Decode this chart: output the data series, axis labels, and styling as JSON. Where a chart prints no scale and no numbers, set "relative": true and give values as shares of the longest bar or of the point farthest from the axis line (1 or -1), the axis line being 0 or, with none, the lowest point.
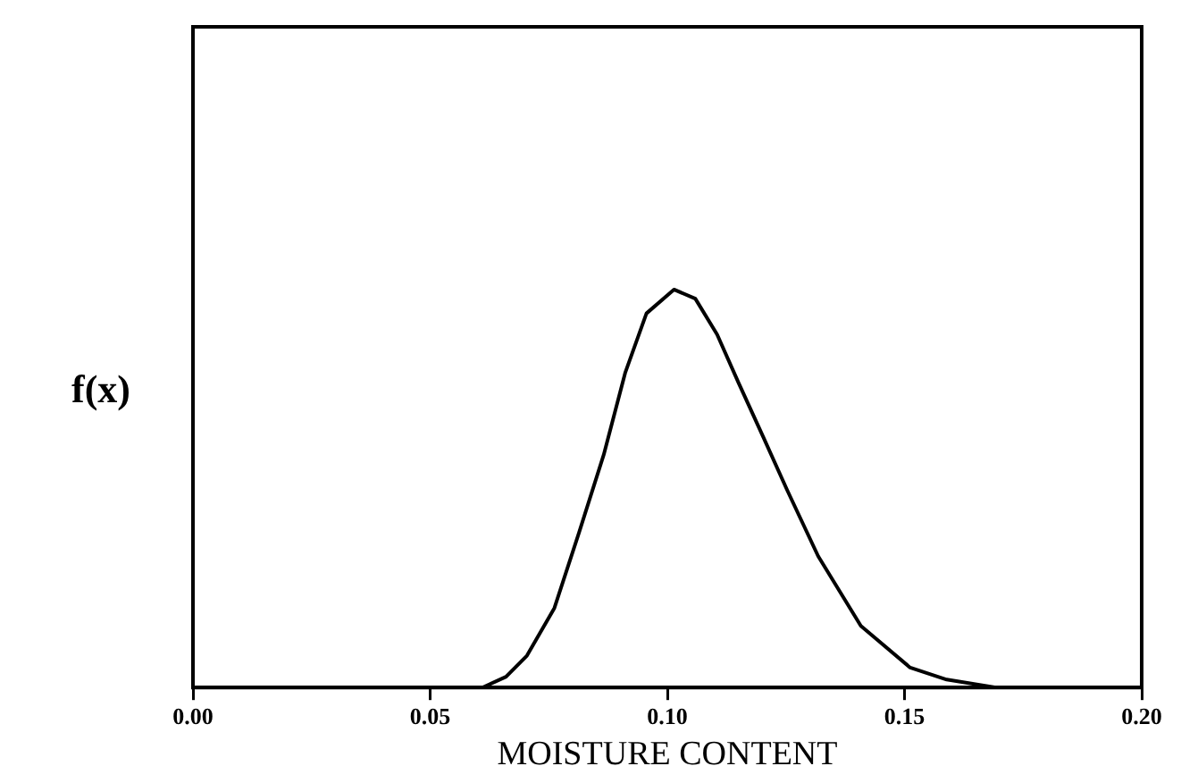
{
  "chart_data": {
    "type": "line",
    "xlabel": "MOISTURE CONTENT",
    "ylabel": "f(x)",
    "relative": true,
    "x": [
      0.061,
      0.066,
      0.0704,
      0.0762,
      0.0814,
      0.0866,
      0.0911,
      0.0956,
      0.1014,
      0.1059,
      0.1105,
      0.115,
      0.1202,
      0.1253,
      0.1318,
      0.1408,
      0.1512,
      0.1589,
      0.1693
    ],
    "series": [
      {
        "color": "#000000",
        "values": [
          0,
          0.027,
          0.08,
          0.2,
          0.39,
          0.585,
          0.79,
          0.94,
          1,
          0.977,
          0.887,
          0.766,
          0.63,
          0.495,
          0.33,
          0.155,
          0.05,
          0.02,
          0
        ]
      }
    ],
    "xlim": [
      0,
      0.2
    ],
    "xticks": [
      {
        "value": 0,
        "label": "0.00"
      },
      {
        "value": 0.05,
        "label": "0.05"
      },
      {
        "value": 0.1,
        "label": "0.10"
      },
      {
        "value": 0.15,
        "label": "0.15"
      },
      {
        "value": 0.2,
        "label": "0.20"
      }
    ],
    "tick_labels": "x",
    "grid": false,
    "legend": false,
    "marker": "none",
    "line_style": "solid"
  }
}
